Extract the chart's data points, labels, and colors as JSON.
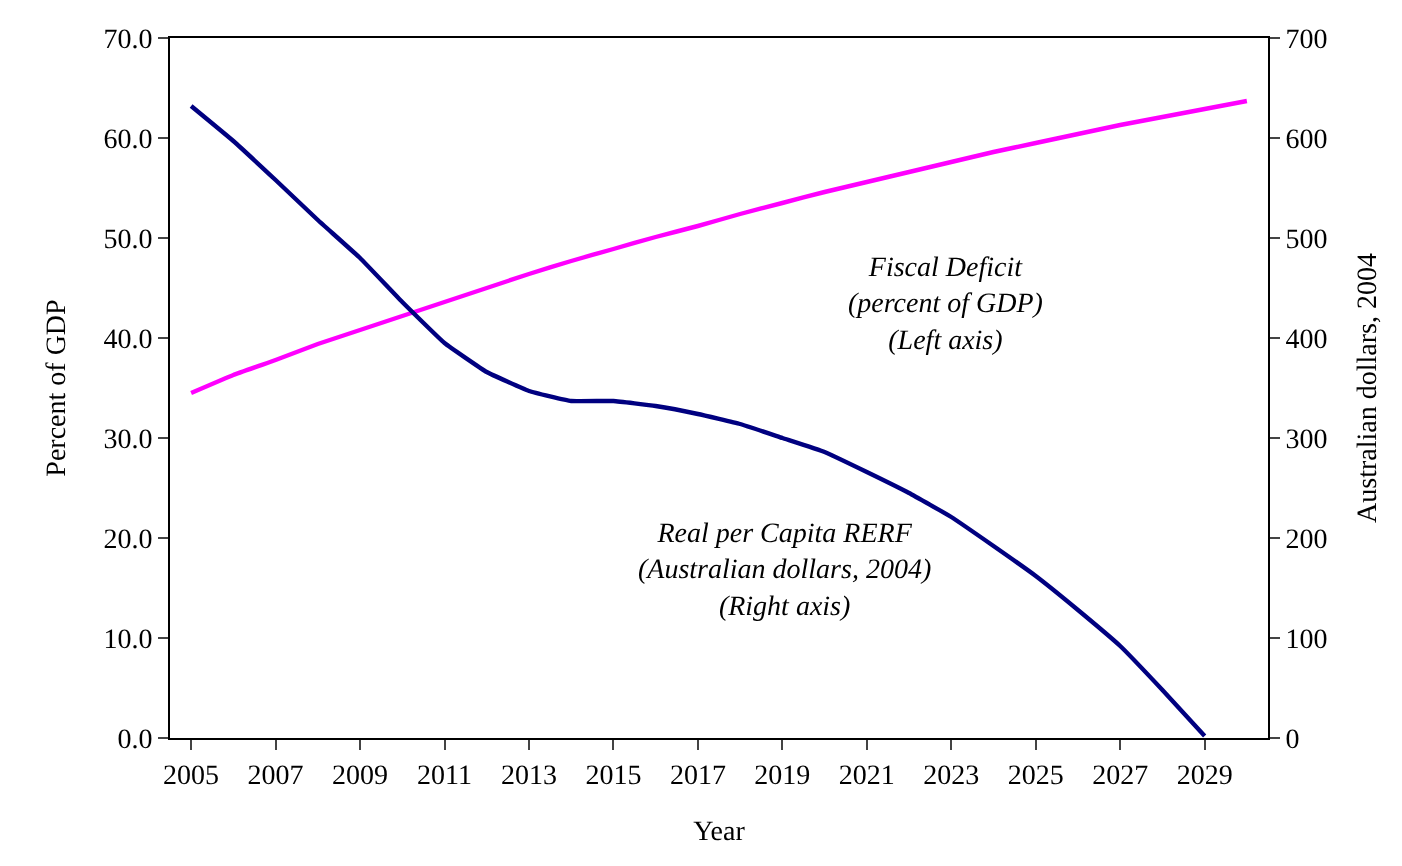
{
  "chart_data": {
    "type": "line",
    "xlabel": "Year",
    "ylabel": "Percent of GDP",
    "y2label": "Australian dollars, 2004",
    "x": [
      2005,
      2006,
      2007,
      2008,
      2009,
      2010,
      2011,
      2012,
      2013,
      2014,
      2015,
      2016,
      2017,
      2018,
      2019,
      2020,
      2021,
      2022,
      2023,
      2024,
      2025,
      2026,
      2027,
      2028,
      2029,
      2030
    ],
    "series": [
      {
        "name": "Fiscal Deficit\n(percent of GDP)\n(Left axis)",
        "color": "#ff00ff",
        "values": [
          34.5,
          36.3,
          37.8,
          39.4,
          40.8,
          42.2,
          43.6,
          45.0,
          46.4,
          47.7,
          48.9,
          50.1,
          51.2,
          52.4,
          53.5,
          54.6,
          55.6,
          56.6,
          57.6,
          58.6,
          59.5,
          60.4,
          61.3,
          62.1,
          62.9,
          63.7
        ]
      },
      {
        "name": "Real per Capita RERF\n(Australian dollars, 2004)\n(Right axis)",
        "color": "#000080",
        "axis": "y2",
        "values": [
          632,
          597,
          558,
          518,
          480,
          436,
          395,
          366,
          347,
          337,
          337,
          332,
          324,
          314,
          300,
          286,
          266,
          245,
          221,
          192,
          162,
          128,
          92,
          48,
          2,
          null
        ]
      }
    ],
    "xlim": [
      2004.5,
      2030.5
    ],
    "xticks": [
      2005,
      2007,
      2009,
      2011,
      2013,
      2015,
      2017,
      2019,
      2021,
      2023,
      2025,
      2027,
      2029
    ],
    "ylim": [
      0,
      70
    ],
    "yticks": [
      {
        "value": 0,
        "label": "0.0"
      },
      {
        "value": 10,
        "label": "10.0"
      },
      {
        "value": 20,
        "label": "20.0"
      },
      {
        "value": 30,
        "label": "30.0"
      },
      {
        "value": 40,
        "label": "40.0"
      },
      {
        "value": 50,
        "label": "50.0"
      },
      {
        "value": 60,
        "label": "60.0"
      },
      {
        "value": 70,
        "label": "70.0"
      }
    ],
    "y2lim": [
      0,
      700
    ],
    "y2ticks": [
      0,
      100,
      200,
      300,
      400,
      500,
      600,
      700
    ],
    "legend": false,
    "marker": "none",
    "line_style": "solid"
  }
}
